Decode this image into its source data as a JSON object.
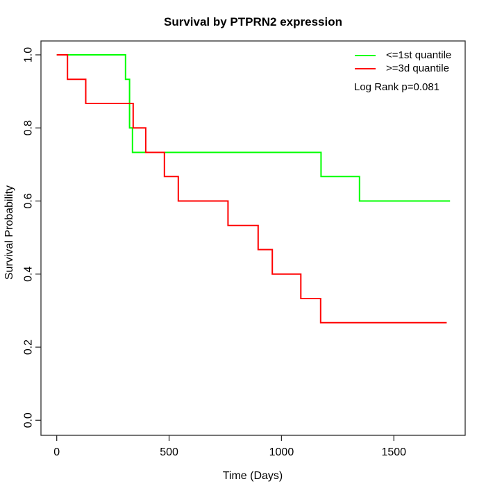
{
  "title": "Survival by PTPRN2 expression",
  "axes": {
    "x": {
      "label": "Time (Days)",
      "tick_labels": [
        "0",
        "500",
        "1000",
        "1500"
      ],
      "tick_values": [
        0,
        500,
        1000,
        1500
      ],
      "range_days": [
        0,
        1817
      ]
    },
    "y": {
      "label": "Survival Probability",
      "tick_labels": [
        "0.0",
        "0.2",
        "0.4",
        "0.6",
        "0.8",
        "1.0"
      ],
      "tick_values": [
        0.0,
        0.2,
        0.4,
        0.6,
        0.8,
        1.0
      ],
      "range": [
        0,
        1
      ]
    }
  },
  "legend": {
    "position": "top-right",
    "items": [
      {
        "label": "<=1st quantile",
        "color": "#00ff00"
      },
      {
        "label": ">=3d quantile",
        "color": "#ff0000"
      }
    ]
  },
  "annotation": {
    "log_rank_label": "Log Rank p=0.081"
  },
  "chart_data": {
    "type": "line",
    "subtype": "kaplan-meier-step-curves",
    "title": "Survival by PTPRN2 expression",
    "xlabel": "Time (Days)",
    "ylabel": "Survival Probability",
    "xlim": [
      0,
      1817
    ],
    "ylim": [
      0,
      1
    ],
    "grid": false,
    "legend_position": "top-right",
    "log_rank_p": 0.081,
    "series": [
      {
        "name": "<=1st quantile",
        "color": "#00ff00",
        "start_survival": 1.0,
        "drops": [
          {
            "time": 306,
            "survival_after": 0.933
          },
          {
            "time": 324,
            "survival_after": 0.8
          },
          {
            "time": 337,
            "survival_after": 0.733
          },
          {
            "time": 1176,
            "survival_after": 0.667
          },
          {
            "time": 1347,
            "survival_after": 0.6
          }
        ],
        "end_time": 1750,
        "end_survival": 0.6
      },
      {
        "name": ">=3d quantile",
        "color": "#ff0000",
        "start_survival": 1.0,
        "drops": [
          {
            "time": 48,
            "survival_after": 0.933
          },
          {
            "time": 129,
            "survival_after": 0.867
          },
          {
            "time": 340,
            "survival_after": 0.8
          },
          {
            "time": 396,
            "survival_after": 0.733
          },
          {
            "time": 479,
            "survival_after": 0.667
          },
          {
            "time": 541,
            "survival_after": 0.6
          },
          {
            "time": 762,
            "survival_after": 0.533
          },
          {
            "time": 896,
            "survival_after": 0.467
          },
          {
            "time": 959,
            "survival_after": 0.4
          },
          {
            "time": 1086,
            "survival_after": 0.333
          },
          {
            "time": 1174,
            "survival_after": 0.267
          }
        ],
        "end_time": 1735,
        "end_survival": 0.267
      }
    ]
  }
}
